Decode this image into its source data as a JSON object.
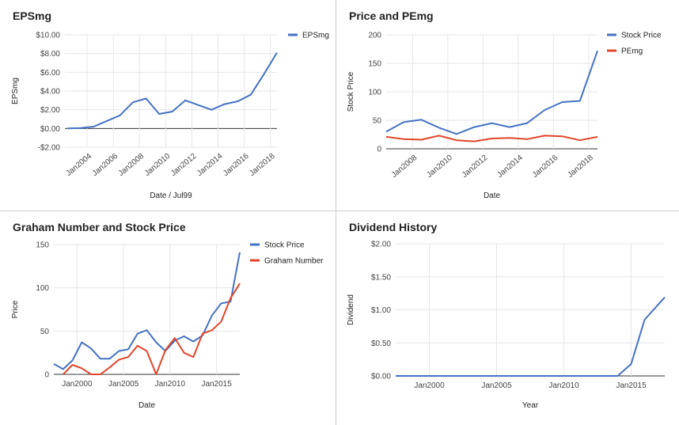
{
  "colors": {
    "blue": "#4472c4",
    "red": "#e0462a"
  },
  "chart_data": [
    {
      "type": "line",
      "title": "EPSmg",
      "xlabel": "Date / Jul99",
      "ylabel": "EPSmg",
      "xlim": [
        2002.3,
        2018.5
      ],
      "ylim": [
        -2,
        10
      ],
      "y_ticks": [
        -2,
        0,
        2,
        4,
        6,
        8,
        10
      ],
      "y_tick_labels": [
        "-$2.00",
        "$0.00",
        "$2.00",
        "$4.00",
        "$6.00",
        "$8.00",
        "$10.00"
      ],
      "x_ticks": [
        2004,
        2006,
        2008,
        2010,
        2012,
        2014,
        2016,
        2018
      ],
      "x_tick_labels": [
        "Jan2004",
        "Jan2006",
        "Jan2008",
        "Jan2010",
        "Jan2012",
        "Jan2014",
        "Jan2016",
        "Jan2018"
      ],
      "x_tick_rotate": true,
      "legend": "top-right",
      "series": [
        {
          "name": "EPSmg",
          "color": "#4472c4",
          "x": [
            2002.5,
            2003.5,
            2004.5,
            2005.5,
            2006.5,
            2007.5,
            2008.5,
            2009.5,
            2010.5,
            2011.5,
            2012.5,
            2013.5,
            2014.5,
            2015.5,
            2016.5,
            2017.5,
            2018.5
          ],
          "y": [
            0.0,
            0.05,
            0.2,
            0.8,
            1.4,
            2.8,
            3.2,
            1.55,
            1.8,
            3.0,
            2.5,
            2.0,
            2.6,
            2.9,
            3.6,
            5.8,
            8.1
          ]
        }
      ]
    },
    {
      "type": "line",
      "title": "Price and PEmg",
      "xlabel": "Date",
      "ylabel": "Stock Price",
      "xlim": [
        2006.5,
        2018.5
      ],
      "ylim": [
        0,
        200
      ],
      "y_ticks": [
        0,
        50,
        100,
        150,
        200
      ],
      "y_tick_labels": [
        "0",
        "50",
        "100",
        "150",
        "200"
      ],
      "x_ticks": [
        2008,
        2010,
        2012,
        2014,
        2016,
        2018
      ],
      "x_tick_labels": [
        "Jan2008",
        "Jan2010",
        "Jan2012",
        "Jan2014",
        "Jan2016",
        "Jan2018"
      ],
      "x_tick_rotate": true,
      "legend": "top-right",
      "series": [
        {
          "name": "Stock Price",
          "color": "#4472c4",
          "x": [
            2006.5,
            2007.5,
            2008.5,
            2009.5,
            2010.5,
            2011.5,
            2012.5,
            2013.5,
            2014.5,
            2015.5,
            2016.5,
            2017.5,
            2018.5
          ],
          "y": [
            30,
            47,
            51,
            37,
            26,
            38,
            45,
            38,
            45,
            68,
            82,
            84,
            172
          ]
        },
        {
          "name": "PEmg",
          "color": "#e0462a",
          "x": [
            2006.5,
            2007.5,
            2008.5,
            2009.5,
            2010.5,
            2011.5,
            2012.5,
            2013.5,
            2014.5,
            2015.5,
            2016.5,
            2017.5,
            2018.5
          ],
          "y": [
            21,
            17,
            16,
            23,
            15,
            13,
            18,
            19,
            17,
            23,
            22,
            15,
            21
          ]
        }
      ]
    },
    {
      "type": "line",
      "title": "Graham Number and Stock Price",
      "xlabel": "Date",
      "ylabel": "Price",
      "xlim": [
        1997.5,
        2017.5
      ],
      "ylim": [
        0,
        150
      ],
      "y_ticks": [
        0,
        50,
        100,
        150
      ],
      "y_tick_labels": [
        "0",
        "50",
        "100",
        "150"
      ],
      "x_ticks": [
        2000,
        2005,
        2010,
        2015
      ],
      "x_tick_labels": [
        "Jan2000",
        "Jan2005",
        "Jan2010",
        "Jan2015"
      ],
      "x_tick_rotate": false,
      "legend": "top-right",
      "series": [
        {
          "name": "Stock Price",
          "color": "#4472c4",
          "x": [
            1997.5,
            1998.5,
            1999.5,
            2000.5,
            2001.5,
            2002.5,
            2003.5,
            2004.5,
            2005.5,
            2006.5,
            2007.5,
            2008.5,
            2009.5,
            2010.5,
            2011.5,
            2012.5,
            2013.5,
            2014.5,
            2015.5,
            2016.5,
            2017.5
          ],
          "y": [
            12,
            6,
            16,
            37,
            30,
            18,
            18,
            27,
            29,
            47,
            51,
            37,
            27,
            39,
            44,
            38,
            45,
            68,
            82,
            84,
            141
          ]
        },
        {
          "name": "Graham Number",
          "color": "#e0462a",
          "x": [
            1998.5,
            1999.5,
            2000.5,
            2001.5,
            2002.5,
            2003.5,
            2004.5,
            2005.5,
            2006.5,
            2007.5,
            2008.5,
            2009.5,
            2010.5,
            2011.5,
            2012.5,
            2013.5,
            2014.5,
            2015.5,
            2016.5,
            2017.5
          ],
          "y": [
            0,
            11,
            7,
            0,
            0,
            8,
            17,
            20,
            33,
            27,
            0,
            28,
            42,
            25,
            20,
            47,
            51,
            61,
            88,
            105
          ]
        }
      ]
    },
    {
      "type": "line",
      "title": "Dividend History",
      "xlabel": "Year",
      "ylabel": "Dividend",
      "xlim": [
        1997.5,
        2017.5
      ],
      "ylim": [
        0,
        2
      ],
      "y_ticks": [
        0,
        0.5,
        1,
        1.5,
        2
      ],
      "y_tick_labels": [
        "$0.00",
        "$0.50",
        "$1.00",
        "$1.50",
        "$2.00"
      ],
      "x_ticks": [
        2000,
        2005,
        2010,
        2015
      ],
      "x_tick_labels": [
        "Jan2000",
        "Jan2005",
        "Jan2010",
        "Jan2015"
      ],
      "x_tick_rotate": false,
      "legend": "",
      "series": [
        {
          "name": "",
          "color": "#4472c4",
          "x": [
            1997.5,
            2014.0,
            2015.0,
            2016.0,
            2017.5
          ],
          "y": [
            0,
            0,
            0.18,
            0.85,
            1.19
          ]
        }
      ]
    }
  ]
}
